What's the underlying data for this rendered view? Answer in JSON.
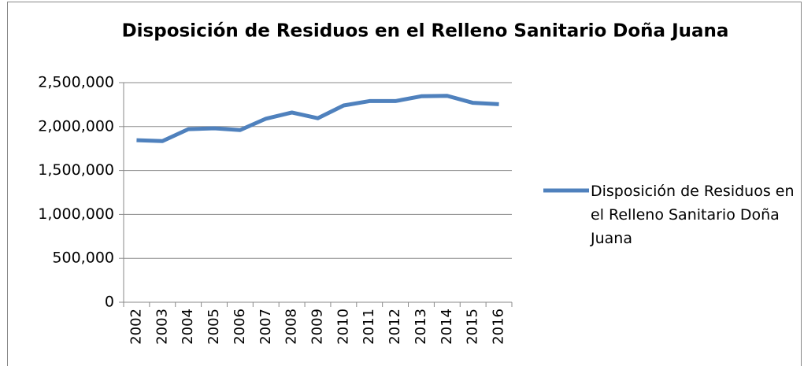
{
  "chart_data": {
    "type": "line",
    "title": "Disposición de Residuos en el Relleno Sanitario Doña Juana",
    "categories": [
      "2002",
      "2003",
      "2004",
      "2005",
      "2006",
      "2007",
      "2008",
      "2009",
      "2010",
      "2011",
      "2012",
      "2013",
      "2014",
      "2015",
      "2016"
    ],
    "series": [
      {
        "name": "Disposición de Residuos en el Relleno Sanitario Doña Juana",
        "color": "#4f81bd",
        "values": [
          1845000,
          1835000,
          1970000,
          1980000,
          1960000,
          2090000,
          2160000,
          2095000,
          2240000,
          2290000,
          2290000,
          2345000,
          2350000,
          2270000,
          2255000
        ]
      }
    ],
    "ylim": [
      0,
      2500000
    ],
    "yticks": [
      0,
      {
        "value": 500000,
        "label": "500,000"
      },
      {
        "value": 1000000,
        "label": "1,000,000"
      },
      {
        "value": 1500000,
        "label": "1,500,000"
      },
      {
        "value": 2000000,
        "label": "2,000,000"
      },
      {
        "value": 2500000,
        "label": "2,500,000"
      }
    ],
    "grid": true,
    "legend": "right"
  }
}
